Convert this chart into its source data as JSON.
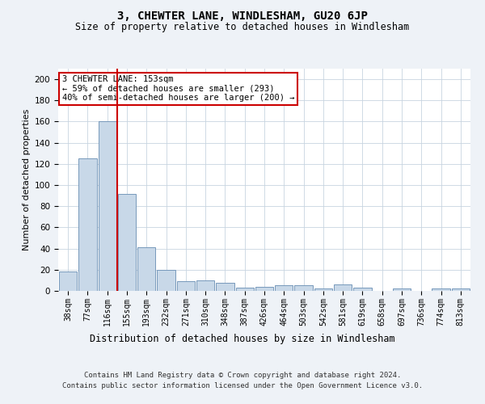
{
  "title": "3, CHEWTER LANE, WINDLESHAM, GU20 6JP",
  "subtitle": "Size of property relative to detached houses in Windlesham",
  "xlabel": "Distribution of detached houses by size in Windlesham",
  "ylabel": "Number of detached properties",
  "categories": [
    "38sqm",
    "77sqm",
    "116sqm",
    "155sqm",
    "193sqm",
    "232sqm",
    "271sqm",
    "310sqm",
    "348sqm",
    "387sqm",
    "426sqm",
    "464sqm",
    "503sqm",
    "542sqm",
    "581sqm",
    "619sqm",
    "658sqm",
    "697sqm",
    "736sqm",
    "774sqm",
    "813sqm"
  ],
  "values": [
    18,
    125,
    160,
    92,
    41,
    20,
    9,
    10,
    8,
    3,
    4,
    5,
    5,
    2,
    6,
    3,
    0,
    2,
    0,
    2,
    2
  ],
  "bar_color": "#c8d8e8",
  "bar_edge_color": "#7799bb",
  "vline_color": "#cc0000",
  "vline_index": 2.5,
  "annotation_text": "3 CHEWTER LANE: 153sqm\n← 59% of detached houses are smaller (293)\n40% of semi-detached houses are larger (200) →",
  "annotation_box_color": "#ffffff",
  "annotation_box_edge": "#cc0000",
  "ylim": [
    0,
    210
  ],
  "yticks": [
    0,
    20,
    40,
    60,
    80,
    100,
    120,
    140,
    160,
    180,
    200
  ],
  "footer_line1": "Contains HM Land Registry data © Crown copyright and database right 2024.",
  "footer_line2": "Contains public sector information licensed under the Open Government Licence v3.0.",
  "background_color": "#eef2f7",
  "plot_bg_color": "#ffffff",
  "grid_color": "#c8d4e0",
  "title_fontsize": 10,
  "subtitle_fontsize": 8.5,
  "ylabel_fontsize": 8,
  "xlabel_fontsize": 8.5,
  "tick_fontsize": 7,
  "footer_fontsize": 6.5,
  "ann_fontsize": 7.5
}
